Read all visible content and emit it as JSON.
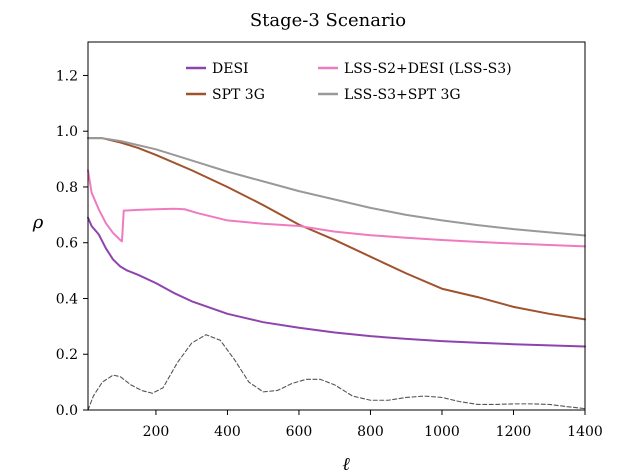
{
  "chart_data": {
    "type": "line",
    "title": "Stage-3 Scenario",
    "xlabel": "ℓ",
    "ylabel": "ρ",
    "xlim": [
      10,
      1400
    ],
    "ylim": [
      0.0,
      1.32
    ],
    "xticks": [
      200,
      400,
      600,
      800,
      1000,
      1200,
      1400
    ],
    "yticks": [
      0.0,
      0.2,
      0.4,
      0.6,
      0.8,
      1.0,
      1.2
    ],
    "xtick_labels": [
      "200",
      "400",
      "600",
      "800",
      "1000",
      "1200",
      "1400"
    ],
    "ytick_labels": [
      "0.0",
      "0.2",
      "0.4",
      "0.6",
      "0.8",
      "1.0",
      "1.2"
    ],
    "grid": false,
    "legend_position": "top-right",
    "series": [
      {
        "name": "DESI",
        "color": "#8e44ad",
        "dashed": false,
        "x": [
          10,
          20,
          40,
          60,
          80,
          100,
          120,
          150,
          200,
          250,
          300,
          400,
          500,
          600,
          700,
          800,
          900,
          1000,
          1100,
          1200,
          1300,
          1400
        ],
        "y": [
          0.69,
          0.66,
          0.63,
          0.58,
          0.54,
          0.515,
          0.5,
          0.485,
          0.455,
          0.42,
          0.39,
          0.345,
          0.315,
          0.295,
          0.278,
          0.265,
          0.255,
          0.247,
          0.241,
          0.236,
          0.232,
          0.228
        ]
      },
      {
        "name": "SPT 3G",
        "color": "#a0522d",
        "dashed": false,
        "x": [
          10,
          50,
          100,
          150,
          200,
          300,
          400,
          500,
          600,
          700,
          800,
          900,
          1000,
          1100,
          1200,
          1300,
          1400
        ],
        "y": [
          0.975,
          0.975,
          0.96,
          0.94,
          0.915,
          0.86,
          0.8,
          0.735,
          0.665,
          0.61,
          0.55,
          0.49,
          0.435,
          0.405,
          0.37,
          0.345,
          0.325
        ]
      },
      {
        "name": "LSS-S2+DESI (LSS-S3)",
        "color": "#f07ac0",
        "dashed": false,
        "x": [
          10,
          20,
          40,
          60,
          80,
          100,
          105,
          110,
          150,
          200,
          250,
          280,
          320,
          400,
          500,
          600,
          700,
          800,
          900,
          1000,
          1100,
          1200,
          1300,
          1400
        ],
        "y": [
          0.86,
          0.78,
          0.72,
          0.67,
          0.635,
          0.61,
          0.605,
          0.715,
          0.718,
          0.72,
          0.722,
          0.72,
          0.705,
          0.68,
          0.668,
          0.66,
          0.64,
          0.627,
          0.618,
          0.61,
          0.603,
          0.597,
          0.592,
          0.587
        ]
      },
      {
        "name": "LSS-S3+SPT 3G",
        "color": "#999999",
        "dashed": false,
        "x": [
          10,
          50,
          100,
          200,
          300,
          400,
          500,
          600,
          700,
          800,
          900,
          1000,
          1100,
          1200,
          1300,
          1400
        ],
        "y": [
          0.975,
          0.975,
          0.965,
          0.935,
          0.895,
          0.855,
          0.82,
          0.785,
          0.755,
          0.725,
          0.7,
          0.68,
          0.663,
          0.649,
          0.637,
          0.626
        ]
      },
      {
        "name": "",
        "color": "#555555",
        "dashed": true,
        "x": [
          10,
          25,
          50,
          80,
          100,
          130,
          160,
          190,
          220,
          260,
          300,
          340,
          380,
          420,
          460,
          500,
          540,
          580,
          620,
          660,
          700,
          750,
          800,
          850,
          900,
          950,
          1000,
          1050,
          1100,
          1150,
          1200,
          1250,
          1300,
          1350,
          1400
        ],
        "y": [
          0.0,
          0.05,
          0.1,
          0.125,
          0.12,
          0.09,
          0.07,
          0.06,
          0.08,
          0.17,
          0.24,
          0.27,
          0.25,
          0.18,
          0.1,
          0.065,
          0.07,
          0.095,
          0.11,
          0.11,
          0.09,
          0.05,
          0.035,
          0.035,
          0.045,
          0.05,
          0.045,
          0.03,
          0.02,
          0.02,
          0.022,
          0.022,
          0.02,
          0.012,
          0.005
        ]
      }
    ]
  }
}
